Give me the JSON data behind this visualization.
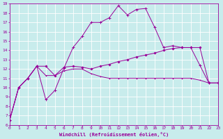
{
  "xlabel": "Windchill (Refroidissement éolien,°C)",
  "background_color": "#c8ecec",
  "line_color": "#990099",
  "grid_color": "#ffffff",
  "ylim": [
    6,
    19
  ],
  "xlim": [
    0,
    23
  ],
  "yticks": [
    6,
    7,
    8,
    9,
    10,
    11,
    12,
    13,
    14,
    15,
    16,
    17,
    18,
    19
  ],
  "xticks": [
    0,
    1,
    2,
    3,
    4,
    5,
    6,
    7,
    8,
    9,
    10,
    11,
    12,
    13,
    14,
    15,
    16,
    17,
    18,
    19,
    20,
    21,
    22,
    23
  ],
  "line_peak_x": [
    0,
    1,
    2,
    3,
    4,
    5,
    6,
    7,
    8,
    9,
    10,
    11,
    12,
    13,
    14,
    15,
    16,
    17,
    18,
    19,
    20,
    21,
    22,
    23
  ],
  "line_peak_y": [
    6.5,
    10.0,
    11.0,
    12.3,
    8.7,
    9.7,
    12.1,
    14.3,
    15.5,
    17.0,
    17.0,
    17.5,
    18.8,
    17.8,
    18.4,
    18.5,
    16.5,
    14.3,
    14.5,
    14.3,
    14.3,
    12.4,
    10.5,
    10.5
  ],
  "line_mid_x": [
    0,
    1,
    2,
    3,
    4,
    5,
    6,
    7,
    8,
    9,
    10,
    11,
    12,
    13,
    14,
    15,
    16,
    17,
    18,
    19,
    20,
    21,
    22,
    23
  ],
  "line_mid_y": [
    6.5,
    10.0,
    11.0,
    12.3,
    12.3,
    11.3,
    12.2,
    12.3,
    12.2,
    12.0,
    12.3,
    12.5,
    12.8,
    13.0,
    13.3,
    13.5,
    13.7,
    14.0,
    14.2,
    14.3,
    14.3,
    14.3,
    10.5,
    10.5
  ],
  "line_low_x": [
    0,
    1,
    2,
    3,
    4,
    5,
    6,
    7,
    8,
    9,
    10,
    11,
    12,
    13,
    14,
    15,
    16,
    17,
    18,
    19,
    20,
    21,
    22,
    23
  ],
  "line_low_y": [
    6.5,
    10.0,
    11.0,
    12.3,
    11.3,
    11.3,
    11.8,
    12.0,
    12.0,
    11.5,
    11.2,
    11.0,
    11.0,
    11.0,
    11.0,
    11.0,
    11.0,
    11.0,
    11.0,
    11.0,
    11.0,
    10.8,
    10.5,
    10.5
  ]
}
